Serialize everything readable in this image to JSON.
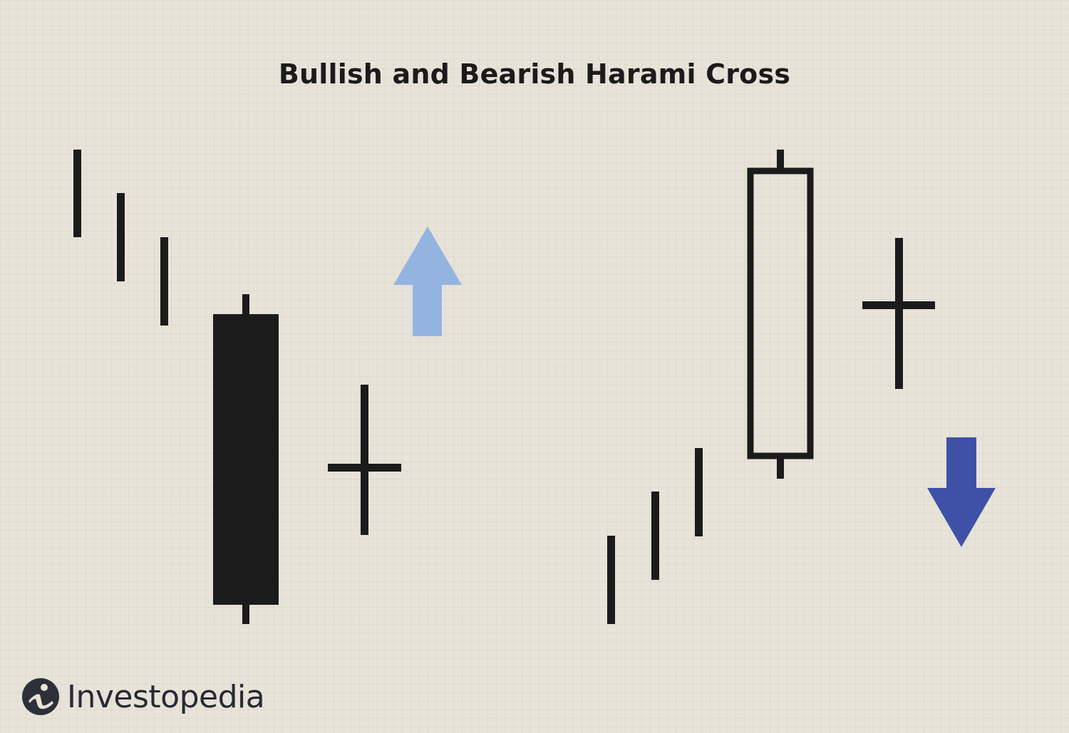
{
  "title": "Bullish and Bearish Harami Cross",
  "brand": {
    "name": "Investopedia",
    "logo_icon": "investopedia-i-icon"
  },
  "colors": {
    "background": "#e8e3d9",
    "ink": "#1b1b1b",
    "bullish_arrow": "#94b4e0",
    "bearish_arrow": "#3f51a6"
  },
  "patterns": [
    {
      "name": "bullish-harami-cross",
      "trend_lines": 3,
      "large_candle": "bearish (filled)",
      "doji": "cross",
      "signal_icon": "arrow-up-icon"
    },
    {
      "name": "bearish-harami-cross",
      "trend_lines": 3,
      "large_candle": "bullish (hollow)",
      "doji": "cross",
      "signal_icon": "arrow-down-icon"
    }
  ]
}
